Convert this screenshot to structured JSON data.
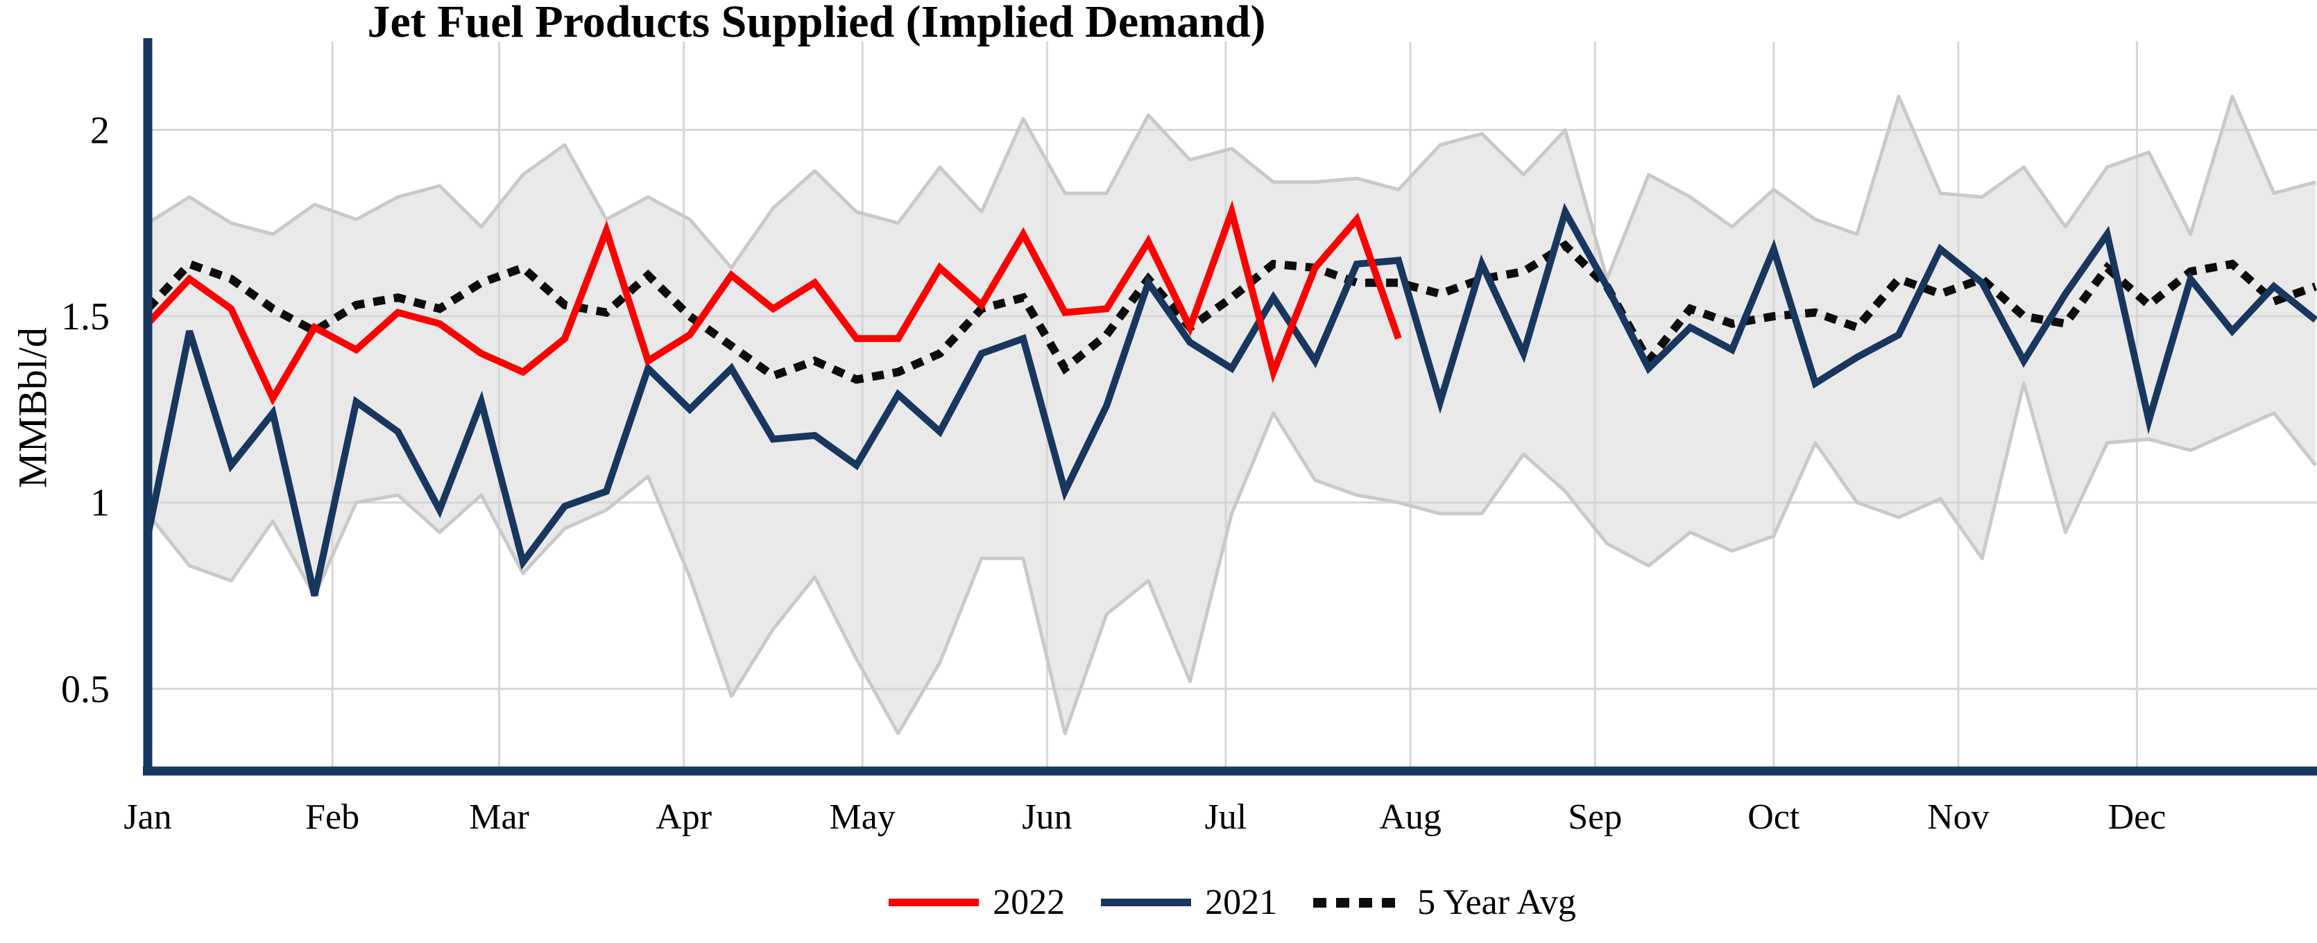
{
  "title": "Jet Fuel Products Supplied (Implied Demand)",
  "y_axis": {
    "label": "MMBbl/d",
    "ticks": [
      {
        "value": 2,
        "label": "2"
      },
      {
        "value": 1.5,
        "label": "1.5"
      },
      {
        "value": 1,
        "label": "1"
      },
      {
        "value": 0.5,
        "label": "0.5"
      }
    ]
  },
  "x_axis": {
    "month_labels": [
      "Jan",
      "Feb",
      "Mar",
      "Apr",
      "May",
      "Jun",
      "Jul",
      "Aug",
      "Sep",
      "Oct",
      "Nov",
      "Dec"
    ],
    "month_start_days": [
      0,
      31,
      59,
      90,
      120,
      151,
      181,
      212,
      243,
      273,
      304,
      334
    ],
    "days_per_year": 364
  },
  "legend": {
    "items": [
      {
        "label": "2022",
        "color": "#fb0200",
        "style": "solid"
      },
      {
        "label": "2021",
        "color": "#17375e",
        "style": "solid"
      },
      {
        "label": "5 Year Avg",
        "color": "#0d0d0d",
        "style": "dotted"
      }
    ]
  },
  "colors": {
    "axis": "#17375e",
    "gridline": "#d6d6d6",
    "band_fill": "#e9e9e9",
    "band_border": "#c9c9c9",
    "series_2022": "#fb0200",
    "series_2021": "#17375e",
    "series_avg": "#0d0d0d"
  },
  "chart_data": {
    "type": "line",
    "title": "Jet Fuel Products Supplied (Implied Demand)",
    "xlabel": "",
    "ylabel": "MMBbl/d",
    "ylim": [
      0.3,
      2.25
    ],
    "x_unit": "week_of_year",
    "weeks": 53,
    "grid": "on",
    "legend_position": "bottom",
    "series": [
      {
        "name": "2022",
        "style": "solid",
        "color": "#fb0200",
        "values": [
          1.48,
          1.6,
          1.52,
          1.28,
          1.47,
          1.41,
          1.51,
          1.48,
          1.4,
          1.35,
          1.44,
          1.73,
          1.38,
          1.45,
          1.61,
          1.52,
          1.59,
          1.44,
          1.44,
          1.63,
          1.53,
          1.72,
          1.51,
          1.52,
          1.7,
          1.47,
          1.78,
          1.35,
          1.63,
          1.76,
          1.44
        ]
      },
      {
        "name": "2021",
        "style": "solid",
        "color": "#17375e",
        "values": [
          0.91,
          1.46,
          1.1,
          1.24,
          0.75,
          1.27,
          1.19,
          0.98,
          1.27,
          0.84,
          0.99,
          1.03,
          1.36,
          1.25,
          1.36,
          1.17,
          1.18,
          1.1,
          1.29,
          1.19,
          1.4,
          1.44,
          1.03,
          1.26,
          1.59,
          1.43,
          1.36,
          1.55,
          1.38,
          1.64,
          1.65,
          1.27,
          1.64,
          1.4,
          1.78,
          1.58,
          1.36,
          1.47,
          1.41,
          1.68,
          1.32,
          1.39,
          1.45,
          1.68,
          1.59,
          1.38,
          1.56,
          1.72,
          1.22,
          1.6,
          1.46,
          1.58,
          1.49
        ]
      },
      {
        "name": "5 Year Avg",
        "style": "dotted",
        "color": "#0d0d0d",
        "values": [
          1.52,
          1.64,
          1.6,
          1.52,
          1.46,
          1.53,
          1.55,
          1.52,
          1.59,
          1.63,
          1.53,
          1.51,
          1.61,
          1.5,
          1.42,
          1.34,
          1.38,
          1.33,
          1.35,
          1.4,
          1.52,
          1.55,
          1.36,
          1.45,
          1.6,
          1.47,
          1.55,
          1.64,
          1.63,
          1.59,
          1.59,
          1.56,
          1.6,
          1.62,
          1.69,
          1.58,
          1.38,
          1.52,
          1.48,
          1.5,
          1.51,
          1.47,
          1.6,
          1.56,
          1.6,
          1.5,
          1.48,
          1.63,
          1.53,
          1.62,
          1.64,
          1.54,
          1.58
        ]
      },
      {
        "name": "5 Year Range Max",
        "style": "band-upper",
        "color": "#c9c9c9",
        "values": [
          1.75,
          1.82,
          1.75,
          1.72,
          1.8,
          1.76,
          1.82,
          1.85,
          1.74,
          1.88,
          1.96,
          1.76,
          1.82,
          1.76,
          1.63,
          1.79,
          1.89,
          1.78,
          1.75,
          1.9,
          1.78,
          2.03,
          1.83,
          1.83,
          2.04,
          1.92,
          1.95,
          1.86,
          1.86,
          1.87,
          1.84,
          1.96,
          1.99,
          1.88,
          2.0,
          1.6,
          1.88,
          1.82,
          1.74,
          1.84,
          1.76,
          1.72,
          2.09,
          1.83,
          1.82,
          1.9,
          1.74,
          1.9,
          1.94,
          1.72,
          2.09,
          1.83,
          1.86
        ]
      },
      {
        "name": "5 Year Range Min",
        "style": "band-lower",
        "color": "#c9c9c9",
        "values": [
          0.97,
          0.83,
          0.79,
          0.95,
          0.75,
          1.0,
          1.02,
          0.92,
          1.02,
          0.81,
          0.93,
          0.98,
          1.07,
          0.8,
          0.48,
          0.66,
          0.8,
          0.58,
          0.38,
          0.57,
          0.85,
          0.85,
          0.38,
          0.7,
          0.79,
          0.52,
          0.97,
          1.24,
          1.06,
          1.02,
          1.0,
          0.97,
          0.97,
          1.13,
          1.03,
          0.89,
          0.83,
          0.92,
          0.87,
          0.91,
          1.16,
          1.0,
          0.96,
          1.01,
          0.85,
          1.32,
          0.92,
          1.16,
          1.17,
          1.14,
          1.19,
          1.24,
          1.1
        ]
      }
    ]
  }
}
